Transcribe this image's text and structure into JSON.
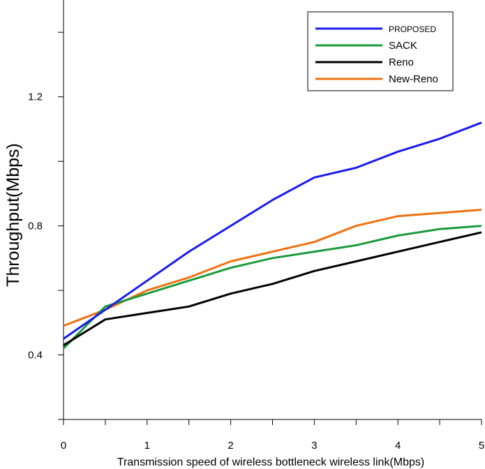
{
  "chart_data": {
    "type": "line",
    "title": "",
    "xlabel": "Transmission speed of wireless bottleneck wireless link(Mbps)",
    "ylabel": "Throughput(Mbps)",
    "xlim": [
      0,
      5
    ],
    "ylim": [
      0.2,
      1.5
    ],
    "xticks": [
      0,
      0.5,
      1,
      1.5,
      2,
      2.5,
      3,
      3.5,
      4,
      4.5,
      5
    ],
    "xtick_labels": [
      "0",
      "1",
      "2",
      "3",
      "4",
      "5"
    ],
    "yticks": [
      0.2,
      0.4,
      0.6,
      0.8,
      1.0,
      1.2,
      1.4
    ],
    "ytick_labels": [
      "0.4",
      "0.8",
      "1.2"
    ],
    "grid": false,
    "legend_position": "top-right",
    "x": [
      0,
      0.5,
      1,
      1.5,
      2,
      2.5,
      3,
      3.5,
      4,
      4.5,
      5
    ],
    "series": [
      {
        "name": "PROPOSED",
        "color": "#1a1aee",
        "values": [
          0.45,
          0.54,
          0.63,
          0.72,
          0.8,
          0.88,
          0.95,
          0.98,
          1.03,
          1.07,
          1.12
        ]
      },
      {
        "name": "SACK",
        "color": "#1a9a3a",
        "values": [
          0.42,
          0.55,
          0.59,
          0.63,
          0.67,
          0.7,
          0.72,
          0.74,
          0.77,
          0.79,
          0.8
        ]
      },
      {
        "name": "Reno",
        "color": "#000000",
        "values": [
          0.43,
          0.51,
          0.53,
          0.55,
          0.59,
          0.62,
          0.66,
          0.69,
          0.72,
          0.75,
          0.78
        ]
      },
      {
        "name": "New-Reno",
        "color": "#f07010",
        "values": [
          0.49,
          0.54,
          0.6,
          0.64,
          0.69,
          0.72,
          0.75,
          0.8,
          0.83,
          0.84,
          0.85
        ]
      }
    ]
  }
}
